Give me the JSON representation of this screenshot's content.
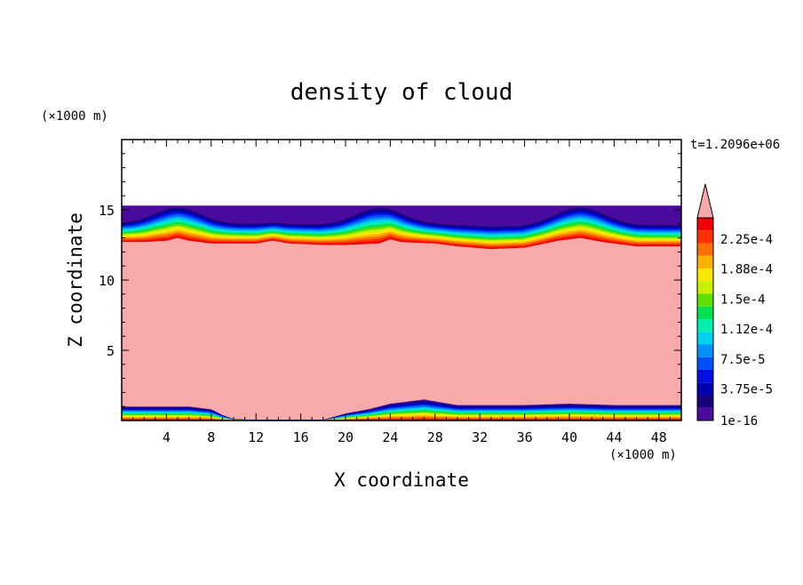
{
  "chart_data": {
    "type": "heatmap",
    "title": "density of cloud",
    "xlabel": "X coordinate",
    "ylabel": "Z coordinate",
    "x_unit": "(×1000 m)",
    "y_unit": "(×1000 m)",
    "time_label": "t=1.2096e+06",
    "xlim": [
      0,
      50
    ],
    "ylim": [
      0,
      20
    ],
    "x_ticks": [
      4,
      8,
      12,
      16,
      20,
      24,
      28,
      32,
      36,
      40,
      44,
      48
    ],
    "y_ticks": [
      5,
      10,
      15
    ],
    "colorbar": {
      "labels": [
        "2.25e-4",
        "1.88e-4",
        "1.5e-4",
        "1.12e-4",
        "7.5e-5",
        "3.75e-5",
        "1e-16"
      ],
      "colors_bottom_to_top": [
        "#4a0a9e",
        "#18007a",
        "#0000b0",
        "#0010e0",
        "#0050ff",
        "#0090ff",
        "#00d0f0",
        "#00f0b0",
        "#00e050",
        "#60e000",
        "#c8f000",
        "#ffe800",
        "#ffb000",
        "#ff7000",
        "#ff3000",
        "#f00000"
      ],
      "overflow_color": "#f8aaaa"
    },
    "regions": {
      "cloud_top_z": 15.3,
      "main_cloud_top_z": [
        [
          0,
          12.7
        ],
        [
          2,
          12.7
        ],
        [
          4,
          12.8
        ],
        [
          5,
          13.0
        ],
        [
          6,
          12.8
        ],
        [
          8,
          12.6
        ],
        [
          12,
          12.6
        ],
        [
          13.5,
          12.8
        ],
        [
          15,
          12.6
        ],
        [
          18,
          12.5
        ],
        [
          20,
          12.5
        ],
        [
          23,
          12.6
        ],
        [
          24,
          12.9
        ],
        [
          25,
          12.7
        ],
        [
          28,
          12.6
        ],
        [
          30,
          12.4
        ],
        [
          33,
          12.2
        ],
        [
          36,
          12.3
        ],
        [
          39,
          12.8
        ],
        [
          41,
          13.0
        ],
        [
          43,
          12.7
        ],
        [
          46,
          12.4
        ],
        [
          50,
          12.4
        ]
      ],
      "lower_cloud_base_z": [
        [
          0,
          1.0
        ],
        [
          6,
          1.0
        ],
        [
          8,
          0.8
        ],
        [
          9,
          0.4
        ],
        [
          10,
          0.1
        ],
        [
          12,
          0.05
        ],
        [
          16,
          0.05
        ],
        [
          18,
          0.05
        ],
        [
          20,
          0.5
        ],
        [
          22,
          0.8
        ],
        [
          24,
          1.2
        ],
        [
          27,
          1.5
        ],
        [
          30,
          1.1
        ],
        [
          36,
          1.1
        ],
        [
          40,
          1.2
        ],
        [
          44,
          1.1
        ],
        [
          50,
          1.1
        ]
      ]
    }
  }
}
